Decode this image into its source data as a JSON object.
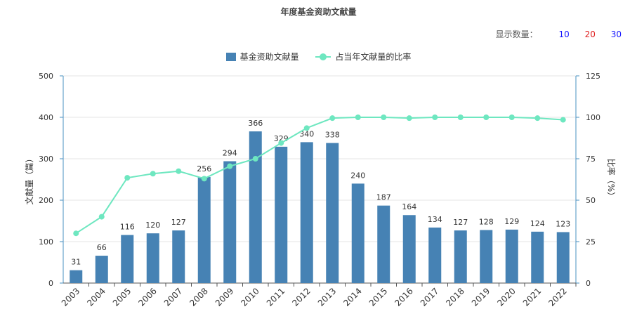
{
  "title": "年度基金资助文献量",
  "controls": {
    "label": "显示数量：",
    "options": [
      "10",
      "20",
      "30"
    ],
    "option_colors": [
      "#1a1aff",
      "#e02020",
      "#1a1aff"
    ]
  },
  "legend": {
    "bar": "基金资助文献量",
    "line": "占当年文献量的比率"
  },
  "colors": {
    "bar": "#4682b4",
    "line": "#6ee7c0",
    "axis": "#4a90c2",
    "grid": "#e6e6e6"
  },
  "chart_data": {
    "type": "bar",
    "title": "年度基金资助文献量",
    "categories": [
      "2003",
      "2004",
      "2005",
      "2006",
      "2007",
      "2008",
      "2009",
      "2010",
      "2011",
      "2012",
      "2013",
      "2014",
      "2015",
      "2016",
      "2017",
      "2018",
      "2019",
      "2020",
      "2021",
      "2022"
    ],
    "series": [
      {
        "name": "基金资助文献量",
        "type": "bar",
        "axis": "left",
        "values": [
          31,
          66,
          116,
          120,
          127,
          256,
          294,
          366,
          329,
          340,
          338,
          240,
          187,
          164,
          134,
          127,
          128,
          129,
          124,
          123
        ]
      },
      {
        "name": "占当年文献量的比率",
        "type": "line",
        "axis": "right",
        "values": [
          30,
          40,
          63.5,
          66,
          67.5,
          63,
          70.5,
          75,
          84.5,
          93.5,
          99.5,
          100,
          100,
          99.5,
          100,
          100,
          100,
          100,
          99.5,
          98.5
        ]
      }
    ],
    "ylabel": "文献量（篇）",
    "ylabel_right": "比率（%）",
    "ylim": [
      0,
      500
    ],
    "ylim_right": [
      0,
      125
    ],
    "yticks": [
      "0",
      "100",
      "200",
      "300",
      "400",
      "500"
    ],
    "yticks_right": [
      "0",
      "25",
      "50",
      "75",
      "100",
      "125"
    ],
    "grid": true,
    "legend_position": "top-center"
  }
}
